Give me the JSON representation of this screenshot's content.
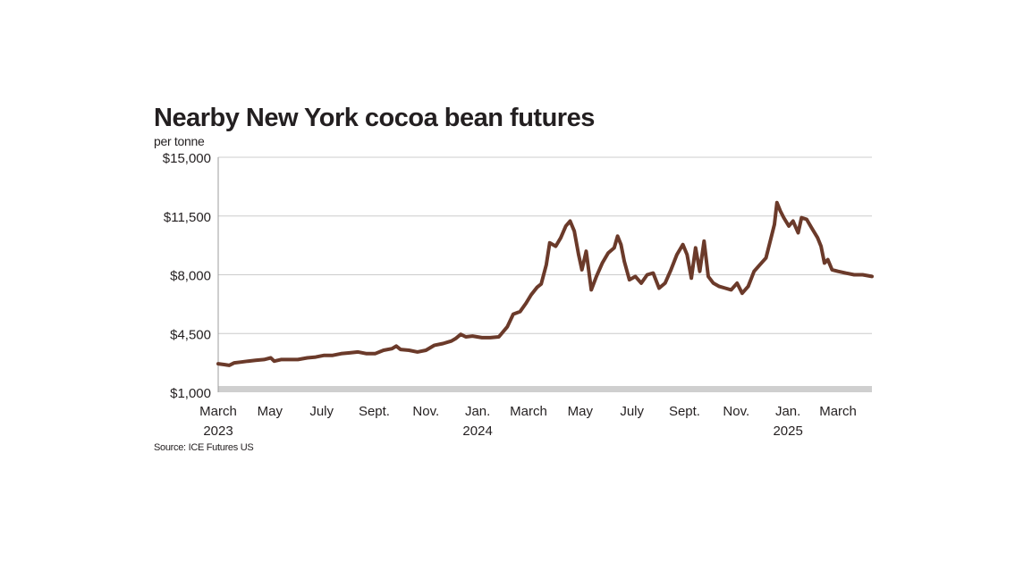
{
  "chart_data": {
    "type": "line",
    "title": "Nearby New York cocoa bean futures",
    "unit_label": "per tonne",
    "source": "Source: ICE Futures US",
    "y_ticks": [
      "$15,000",
      "$11,500",
      "$8,000",
      "$4,500",
      "$1,000"
    ],
    "y_tick_values": [
      15000,
      11500,
      8000,
      4500,
      1000
    ],
    "ylim": [
      1000,
      15000
    ],
    "xlim": [
      "2023-03-01",
      "2025-04-10"
    ],
    "x_ticks": [
      {
        "date": "2023-03-01",
        "label": "March",
        "sublabel": "2023"
      },
      {
        "date": "2023-05-01",
        "label": "May",
        "sublabel": ""
      },
      {
        "date": "2023-07-01",
        "label": "July",
        "sublabel": ""
      },
      {
        "date": "2023-09-01",
        "label": "Sept.",
        "sublabel": ""
      },
      {
        "date": "2023-11-01",
        "label": "Nov.",
        "sublabel": ""
      },
      {
        "date": "2024-01-01",
        "label": "Jan.",
        "sublabel": "2024"
      },
      {
        "date": "2024-03-01",
        "label": "March",
        "sublabel": ""
      },
      {
        "date": "2024-05-01",
        "label": "May",
        "sublabel": ""
      },
      {
        "date": "2024-07-01",
        "label": "July",
        "sublabel": ""
      },
      {
        "date": "2024-09-01",
        "label": "Sept.",
        "sublabel": ""
      },
      {
        "date": "2024-11-01",
        "label": "Nov.",
        "sublabel": ""
      },
      {
        "date": "2025-01-01",
        "label": "Jan.",
        "sublabel": "2025"
      },
      {
        "date": "2025-03-01",
        "label": "March",
        "sublabel": ""
      }
    ],
    "grid": "horizontal",
    "line_color": "#6b3a2a",
    "series": [
      {
        "name": "",
        "points": [
          [
            "2023-03-01",
            2700
          ],
          [
            "2023-03-08",
            2650
          ],
          [
            "2023-03-14",
            2600
          ],
          [
            "2023-03-20",
            2750
          ],
          [
            "2023-03-28",
            2800
          ],
          [
            "2023-04-05",
            2850
          ],
          [
            "2023-04-14",
            2900
          ],
          [
            "2023-04-24",
            2950
          ],
          [
            "2023-05-02",
            3050
          ],
          [
            "2023-05-06",
            2850
          ],
          [
            "2023-05-14",
            2950
          ],
          [
            "2023-05-24",
            2950
          ],
          [
            "2023-06-03",
            2950
          ],
          [
            "2023-06-14",
            3050
          ],
          [
            "2023-06-24",
            3100
          ],
          [
            "2023-07-04",
            3200
          ],
          [
            "2023-07-14",
            3200
          ],
          [
            "2023-07-24",
            3300
          ],
          [
            "2023-08-03",
            3350
          ],
          [
            "2023-08-13",
            3400
          ],
          [
            "2023-08-23",
            3300
          ],
          [
            "2023-09-02",
            3300
          ],
          [
            "2023-09-12",
            3500
          ],
          [
            "2023-09-22",
            3600
          ],
          [
            "2023-09-27",
            3750
          ],
          [
            "2023-10-02",
            3550
          ],
          [
            "2023-10-12",
            3500
          ],
          [
            "2023-10-22",
            3400
          ],
          [
            "2023-11-01",
            3500
          ],
          [
            "2023-11-11",
            3800
          ],
          [
            "2023-11-21",
            3900
          ],
          [
            "2023-12-01",
            4050
          ],
          [
            "2023-12-06",
            4200
          ],
          [
            "2023-12-12",
            4450
          ],
          [
            "2023-12-18",
            4300
          ],
          [
            "2023-12-26",
            4350
          ],
          [
            "2024-01-06",
            4250
          ],
          [
            "2024-01-16",
            4250
          ],
          [
            "2024-01-26",
            4300
          ],
          [
            "2024-02-05",
            4900
          ],
          [
            "2024-02-12",
            5650
          ],
          [
            "2024-02-20",
            5800
          ],
          [
            "2024-02-27",
            6300
          ],
          [
            "2024-03-04",
            6800
          ],
          [
            "2024-03-11",
            7250
          ],
          [
            "2024-03-16",
            7450
          ],
          [
            "2024-03-22",
            8600
          ],
          [
            "2024-03-26",
            9900
          ],
          [
            "2024-04-02",
            9700
          ],
          [
            "2024-04-08",
            10200
          ],
          [
            "2024-04-14",
            10900
          ],
          [
            "2024-04-19",
            11200
          ],
          [
            "2024-04-24",
            10600
          ],
          [
            "2024-04-29",
            9200
          ],
          [
            "2024-05-03",
            8300
          ],
          [
            "2024-05-08",
            9400
          ],
          [
            "2024-05-14",
            7100
          ],
          [
            "2024-05-20",
            7900
          ],
          [
            "2024-05-27",
            8700
          ],
          [
            "2024-06-03",
            9300
          ],
          [
            "2024-06-10",
            9600
          ],
          [
            "2024-06-14",
            10300
          ],
          [
            "2024-06-18",
            9800
          ],
          [
            "2024-06-22",
            8800
          ],
          [
            "2024-06-28",
            7700
          ],
          [
            "2024-07-05",
            7900
          ],
          [
            "2024-07-12",
            7500
          ],
          [
            "2024-07-19",
            8000
          ],
          [
            "2024-07-26",
            8100
          ],
          [
            "2024-08-02",
            7200
          ],
          [
            "2024-08-09",
            7500
          ],
          [
            "2024-08-16",
            8300
          ],
          [
            "2024-08-23",
            9200
          ],
          [
            "2024-08-30",
            9800
          ],
          [
            "2024-09-04",
            9200
          ],
          [
            "2024-09-09",
            7800
          ],
          [
            "2024-09-14",
            9600
          ],
          [
            "2024-09-19",
            8200
          ],
          [
            "2024-09-24",
            10000
          ],
          [
            "2024-09-29",
            7900
          ],
          [
            "2024-10-05",
            7500
          ],
          [
            "2024-10-12",
            7300
          ],
          [
            "2024-10-19",
            7200
          ],
          [
            "2024-10-26",
            7100
          ],
          [
            "2024-11-02",
            7500
          ],
          [
            "2024-11-08",
            6900
          ],
          [
            "2024-11-15",
            7300
          ],
          [
            "2024-11-22",
            8200
          ],
          [
            "2024-11-29",
            8600
          ],
          [
            "2024-12-06",
            9000
          ],
          [
            "2024-12-12",
            10200
          ],
          [
            "2024-12-16",
            11000
          ],
          [
            "2024-12-19",
            12300
          ],
          [
            "2024-12-23",
            11800
          ],
          [
            "2024-12-27",
            11400
          ],
          [
            "2025-01-02",
            10900
          ],
          [
            "2025-01-07",
            11200
          ],
          [
            "2025-01-13",
            10500
          ],
          [
            "2025-01-17",
            11400
          ],
          [
            "2025-01-23",
            11300
          ],
          [
            "2025-01-30",
            10700
          ],
          [
            "2025-02-05",
            10200
          ],
          [
            "2025-02-09",
            9700
          ],
          [
            "2025-02-13",
            8700
          ],
          [
            "2025-02-17",
            8900
          ],
          [
            "2025-02-22",
            8300
          ],
          [
            "2025-03-01",
            8200
          ],
          [
            "2025-03-10",
            8100
          ],
          [
            "2025-03-20",
            8000
          ],
          [
            "2025-03-30",
            8000
          ],
          [
            "2025-04-10",
            7900
          ]
        ]
      }
    ]
  }
}
